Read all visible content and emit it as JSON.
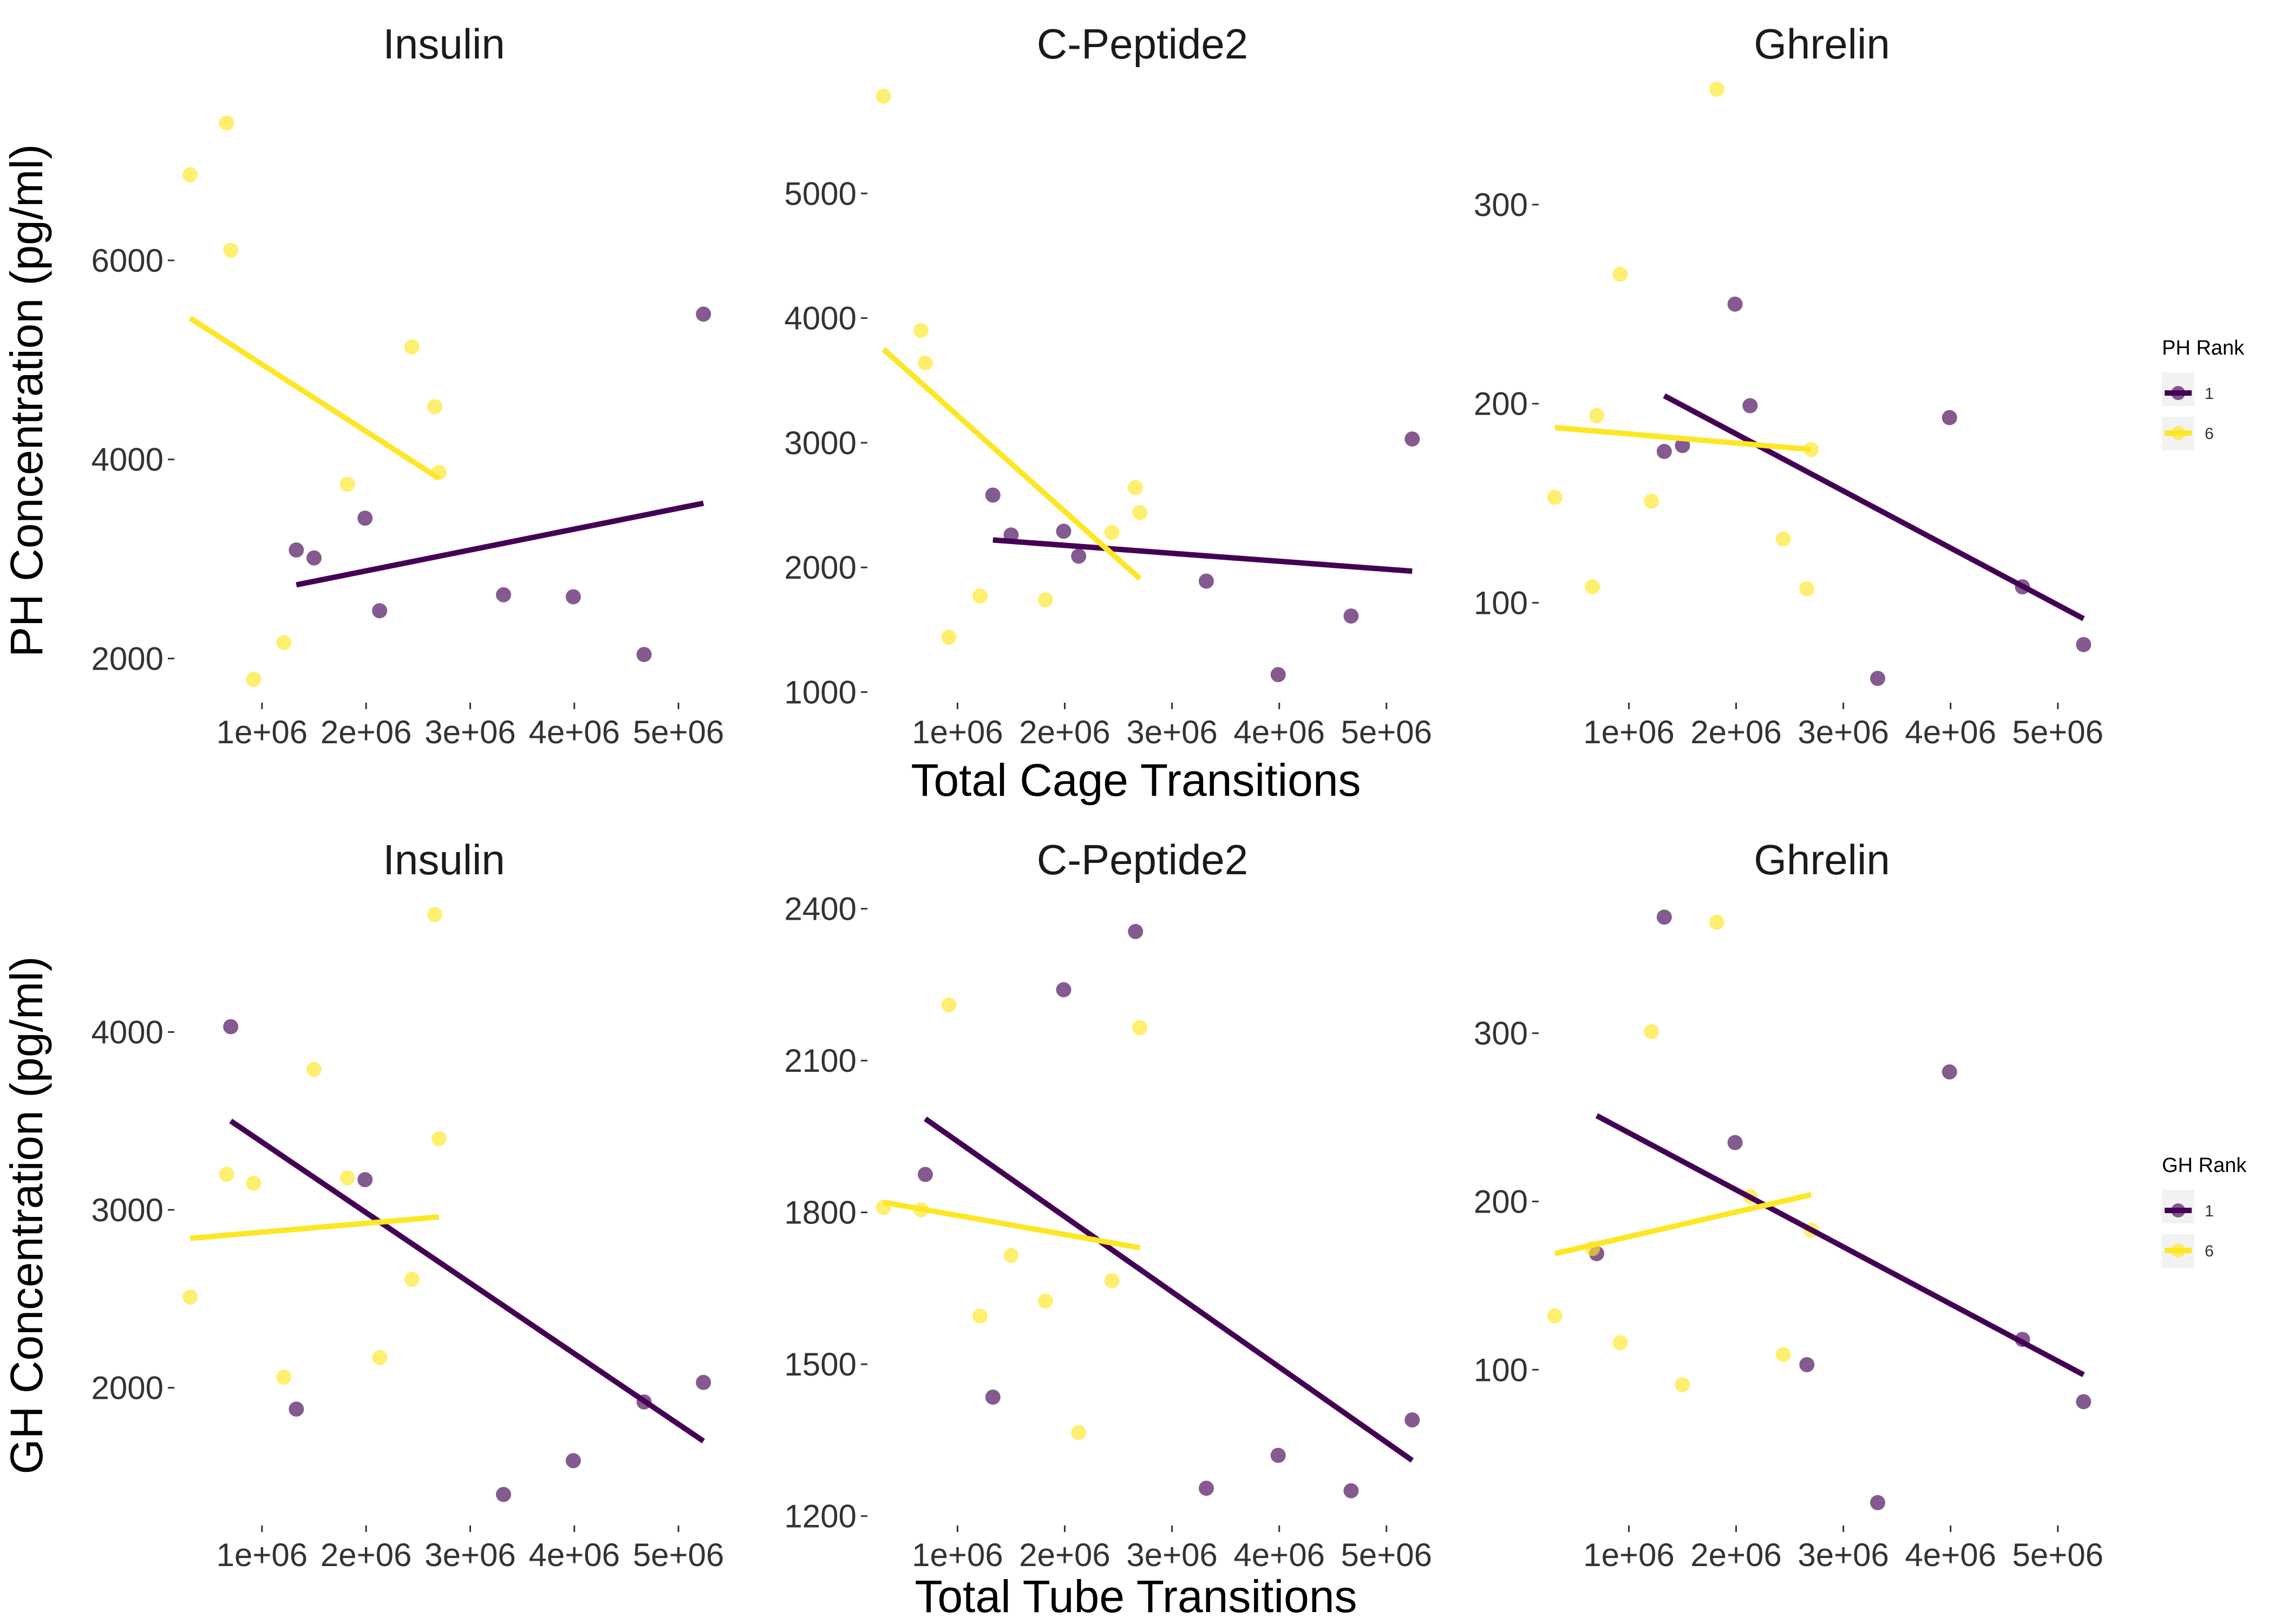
{
  "colors": {
    "rank_1": "#440154",
    "rank_6": "#fde725",
    "legend_bg": "#f2f2f2"
  },
  "chart_data": [
    {
      "type": "scatter",
      "title": "Insulin",
      "xlabel": "",
      "ylabel": "PH Concentration (pg/ml)",
      "xlim": [
        200000,
        5400000
      ],
      "ylim": [
        1600000000,
        7800000000
      ],
      "ylim_note": "",
      "xticks": [
        {
          "value": 1000000,
          "label": "1e+06"
        },
        {
          "value": 2000000,
          "label": "2e+06"
        },
        {
          "value": 3000000,
          "label": "3e+06"
        },
        {
          "value": 4000000,
          "label": "4e+06"
        },
        {
          "value": 5000000,
          "label": "5e+06"
        }
      ],
      "yticks": [
        {
          "value": 2000,
          "label": "2000"
        },
        {
          "value": 4000,
          "label": "4000"
        },
        {
          "value": 6000,
          "label": "6000"
        }
      ],
      "ymin": 1600,
      "ymax": 7800,
      "series": [
        {
          "name": "1",
          "points": [
            [
              1330000,
              3090
            ],
            [
              1500000,
              3010
            ],
            [
              1990000,
              3410
            ],
            [
              2130000,
              2480
            ],
            [
              3320000,
              2640
            ],
            [
              3990000,
              2620
            ],
            [
              4670000,
              2040
            ],
            [
              5240000,
              5460
            ]
          ],
          "fit": [
            [
              1330000,
              2740
            ],
            [
              5240000,
              3560
            ]
          ]
        },
        {
          "name": "6",
          "points": [
            [
              310000,
              6860
            ],
            [
              660000,
              7380
            ],
            [
              700000,
              6100
            ],
            [
              920000,
              1790
            ],
            [
              1210000,
              2160
            ],
            [
              1820000,
              3750
            ],
            [
              2440000,
              5130
            ],
            [
              2660000,
              4530
            ],
            [
              2700000,
              3870
            ]
          ],
          "fit": [
            [
              310000,
              5420
            ],
            [
              2700000,
              3810
            ]
          ]
        }
      ]
    },
    {
      "type": "scatter",
      "title": "C-Peptide2",
      "xlabel": "Total Cage Transitions",
      "ylabel": "",
      "xlim": [
        200000,
        5400000
      ],
      "xticks": [
        {
          "value": 1000000,
          "label": "1e+06"
        },
        {
          "value": 2000000,
          "label": "2e+06"
        },
        {
          "value": 3000000,
          "label": "3e+06"
        },
        {
          "value": 4000000,
          "label": "4e+06"
        },
        {
          "value": 5000000,
          "label": "5e+06"
        }
      ],
      "yticks": [
        {
          "value": 1000,
          "label": "1000"
        },
        {
          "value": 2000,
          "label": "2000"
        },
        {
          "value": 3000,
          "label": "3000"
        },
        {
          "value": 4000,
          "label": "4000"
        },
        {
          "value": 5000,
          "label": "5000"
        }
      ],
      "ymin": 950,
      "ymax": 5900,
      "series": [
        {
          "name": "1",
          "points": [
            [
              1330000,
              2580
            ],
            [
              1500000,
              2260
            ],
            [
              1990000,
              2290
            ],
            [
              2130000,
              2090
            ],
            [
              3320000,
              1890
            ],
            [
              3990000,
              1140
            ],
            [
              4670000,
              1610
            ],
            [
              5240000,
              3030
            ]
          ],
          "fit": [
            [
              1330000,
              2220
            ],
            [
              5240000,
              1970
            ]
          ]
        },
        {
          "name": "6",
          "points": [
            [
              310000,
              5780
            ],
            [
              660000,
              3900
            ],
            [
              700000,
              3640
            ],
            [
              920000,
              1440
            ],
            [
              1210000,
              1770
            ],
            [
              1820000,
              1740
            ],
            [
              2440000,
              2280
            ],
            [
              2660000,
              2640
            ],
            [
              2700000,
              2440
            ]
          ],
          "fit": [
            [
              310000,
              3750
            ],
            [
              2700000,
              1910
            ]
          ]
        }
      ]
    },
    {
      "type": "scatter",
      "title": "Ghrelin",
      "xlabel": "",
      "ylabel": "",
      "xlim": [
        200000,
        5400000
      ],
      "xticks": [
        {
          "value": 1000000,
          "label": "1e+06"
        },
        {
          "value": 2000000,
          "label": "2e+06"
        },
        {
          "value": 3000000,
          "label": "3e+06"
        },
        {
          "value": 4000000,
          "label": "4e+06"
        },
        {
          "value": 5000000,
          "label": "5e+06"
        }
      ],
      "yticks": [
        {
          "value": 100,
          "label": "100"
        },
        {
          "value": 200,
          "label": "200"
        },
        {
          "value": 300,
          "label": "300"
        }
      ],
      "ymin": 52,
      "ymax": 362,
      "series": [
        {
          "name": "1",
          "points": [
            [
              1330000,
              176
            ],
            [
              1500000,
              179
            ],
            [
              1990000,
              250
            ],
            [
              2130000,
              199
            ],
            [
              3320000,
              62
            ],
            [
              3990000,
              193
            ],
            [
              4670000,
              108
            ],
            [
              5240000,
              79
            ]
          ],
          "fit": [
            [
              1330000,
              204
            ],
            [
              5240000,
              92
            ]
          ]
        },
        {
          "name": "6",
          "points": [
            [
              310000,
              153
            ],
            [
              660000,
              108
            ],
            [
              700000,
              194
            ],
            [
              920000,
              265
            ],
            [
              1210000,
              151
            ],
            [
              1820000,
              358
            ],
            [
              2440000,
              132
            ],
            [
              2660000,
              107
            ],
            [
              2700000,
              177
            ]
          ],
          "fit": [
            [
              310000,
              188
            ],
            [
              2700000,
              177
            ]
          ]
        }
      ]
    },
    {
      "type": "scatter",
      "title": "Insulin",
      "xlabel": "",
      "ylabel": "GH Concentration (pg/ml)",
      "xlim": [
        200000,
        5400000
      ],
      "xticks": [
        {
          "value": 1000000,
          "label": "1e+06"
        },
        {
          "value": 2000000,
          "label": "2e+06"
        },
        {
          "value": 3000000,
          "label": "3e+06"
        },
        {
          "value": 4000000,
          "label": "4e+06"
        },
        {
          "value": 5000000,
          "label": "5e+06"
        }
      ],
      "yticks": [
        {
          "value": 2000,
          "label": "2000"
        },
        {
          "value": 3000,
          "label": "3000"
        },
        {
          "value": 4000,
          "label": "4000"
        }
      ],
      "ymin": 1250,
      "ymax": 4750,
      "series": [
        {
          "name": "1",
          "points": [
            [
              700000,
              4030
            ],
            [
              1330000,
              1880
            ],
            [
              1990000,
              3170
            ],
            [
              3320000,
              1400
            ],
            [
              3990000,
              1590
            ],
            [
              4670000,
              1920
            ],
            [
              5240000,
              2030
            ]
          ],
          "fit": [
            [
              700000,
              3500
            ],
            [
              5240000,
              1700
            ]
          ]
        },
        {
          "name": "6",
          "points": [
            [
              310000,
              2510
            ],
            [
              660000,
              3200
            ],
            [
              920000,
              3150
            ],
            [
              1210000,
              2060
            ],
            [
              1500000,
              3790
            ],
            [
              1820000,
              3180
            ],
            [
              2130000,
              2170
            ],
            [
              2440000,
              2610
            ],
            [
              2660000,
              4660
            ],
            [
              2700000,
              3400
            ]
          ],
          "fit": [
            [
              310000,
              2840
            ],
            [
              2700000,
              2960
            ]
          ]
        }
      ]
    },
    {
      "type": "scatter",
      "title": "C-Peptide2",
      "xlabel": "Total Tube Transitions",
      "ylabel": "",
      "xlim": [
        200000,
        5400000
      ],
      "xticks": [
        {
          "value": 1000000,
          "label": "1e+06"
        },
        {
          "value": 2000000,
          "label": "2e+06"
        },
        {
          "value": 3000000,
          "label": "3e+06"
        },
        {
          "value": 4000000,
          "label": "4e+06"
        },
        {
          "value": 5000000,
          "label": "5e+06"
        }
      ],
      "yticks": [
        {
          "value": 1200,
          "label": "1200"
        },
        {
          "value": 1500,
          "label": "1500"
        },
        {
          "value": 1800,
          "label": "1800"
        },
        {
          "value": 2100,
          "label": "2100"
        },
        {
          "value": 2400,
          "label": "2400"
        }
      ],
      "ymin": 1190,
      "ymax": 2420,
      "series": [
        {
          "name": "1",
          "points": [
            [
              700000,
              1875
            ],
            [
              1330000,
              1435
            ],
            [
              1990000,
              2240
            ],
            [
              2660000,
              2355
            ],
            [
              3320000,
              1255
            ],
            [
              3990000,
              1320
            ],
            [
              4670000,
              1250
            ],
            [
              5240000,
              1390
            ]
          ],
          "fit": [
            [
              700000,
              1985
            ],
            [
              5240000,
              1310
            ]
          ]
        },
        {
          "name": "6",
          "points": [
            [
              310000,
              1810
            ],
            [
              660000,
              1805
            ],
            [
              920000,
              2210
            ],
            [
              1210000,
              1595
            ],
            [
              1500000,
              1715
            ],
            [
              1820000,
              1625
            ],
            [
              2130000,
              1365
            ],
            [
              2440000,
              1665
            ],
            [
              2700000,
              2165
            ]
          ],
          "fit": [
            [
              310000,
              1820
            ],
            [
              2700000,
              1730
            ]
          ]
        }
      ]
    },
    {
      "type": "scatter",
      "title": "Ghrelin",
      "xlabel": "",
      "ylabel": "",
      "xlim": [
        200000,
        5400000
      ],
      "xticks": [
        {
          "value": 1000000,
          "label": "1e+06"
        },
        {
          "value": 2000000,
          "label": "2e+06"
        },
        {
          "value": 3000000,
          "label": "3e+06"
        },
        {
          "value": 4000000,
          "label": "4e+06"
        },
        {
          "value": 5000000,
          "label": "5e+06"
        }
      ],
      "yticks": [
        {
          "value": 100,
          "label": "100"
        },
        {
          "value": 200,
          "label": "200"
        },
        {
          "value": 300,
          "label": "300"
        }
      ],
      "ymin": 10,
      "ymax": 380,
      "series": [
        {
          "name": "1",
          "points": [
            [
              700000,
              169
            ],
            [
              1330000,
              369
            ],
            [
              1990000,
              235
            ],
            [
              2660000,
              103
            ],
            [
              3320000,
              21
            ],
            [
              3990000,
              277
            ],
            [
              4670000,
              118
            ],
            [
              5240000,
              81
            ]
          ],
          "fit": [
            [
              700000,
              251
            ],
            [
              5240000,
              97
            ]
          ]
        },
        {
          "name": "6",
          "points": [
            [
              310000,
              132
            ],
            [
              660000,
              172
            ],
            [
              920000,
              116
            ],
            [
              1210000,
              301
            ],
            [
              1500000,
              91
            ],
            [
              1820000,
              366
            ],
            [
              2130000,
              203
            ],
            [
              2440000,
              109
            ],
            [
              2700000,
              183
            ]
          ],
          "fit": [
            [
              310000,
              169
            ],
            [
              2700000,
              204
            ]
          ]
        }
      ]
    }
  ],
  "legends": [
    {
      "title": "PH Rank",
      "items": [
        "1",
        "6"
      ]
    },
    {
      "title": "GH Rank",
      "items": [
        "1",
        "6"
      ]
    }
  ]
}
